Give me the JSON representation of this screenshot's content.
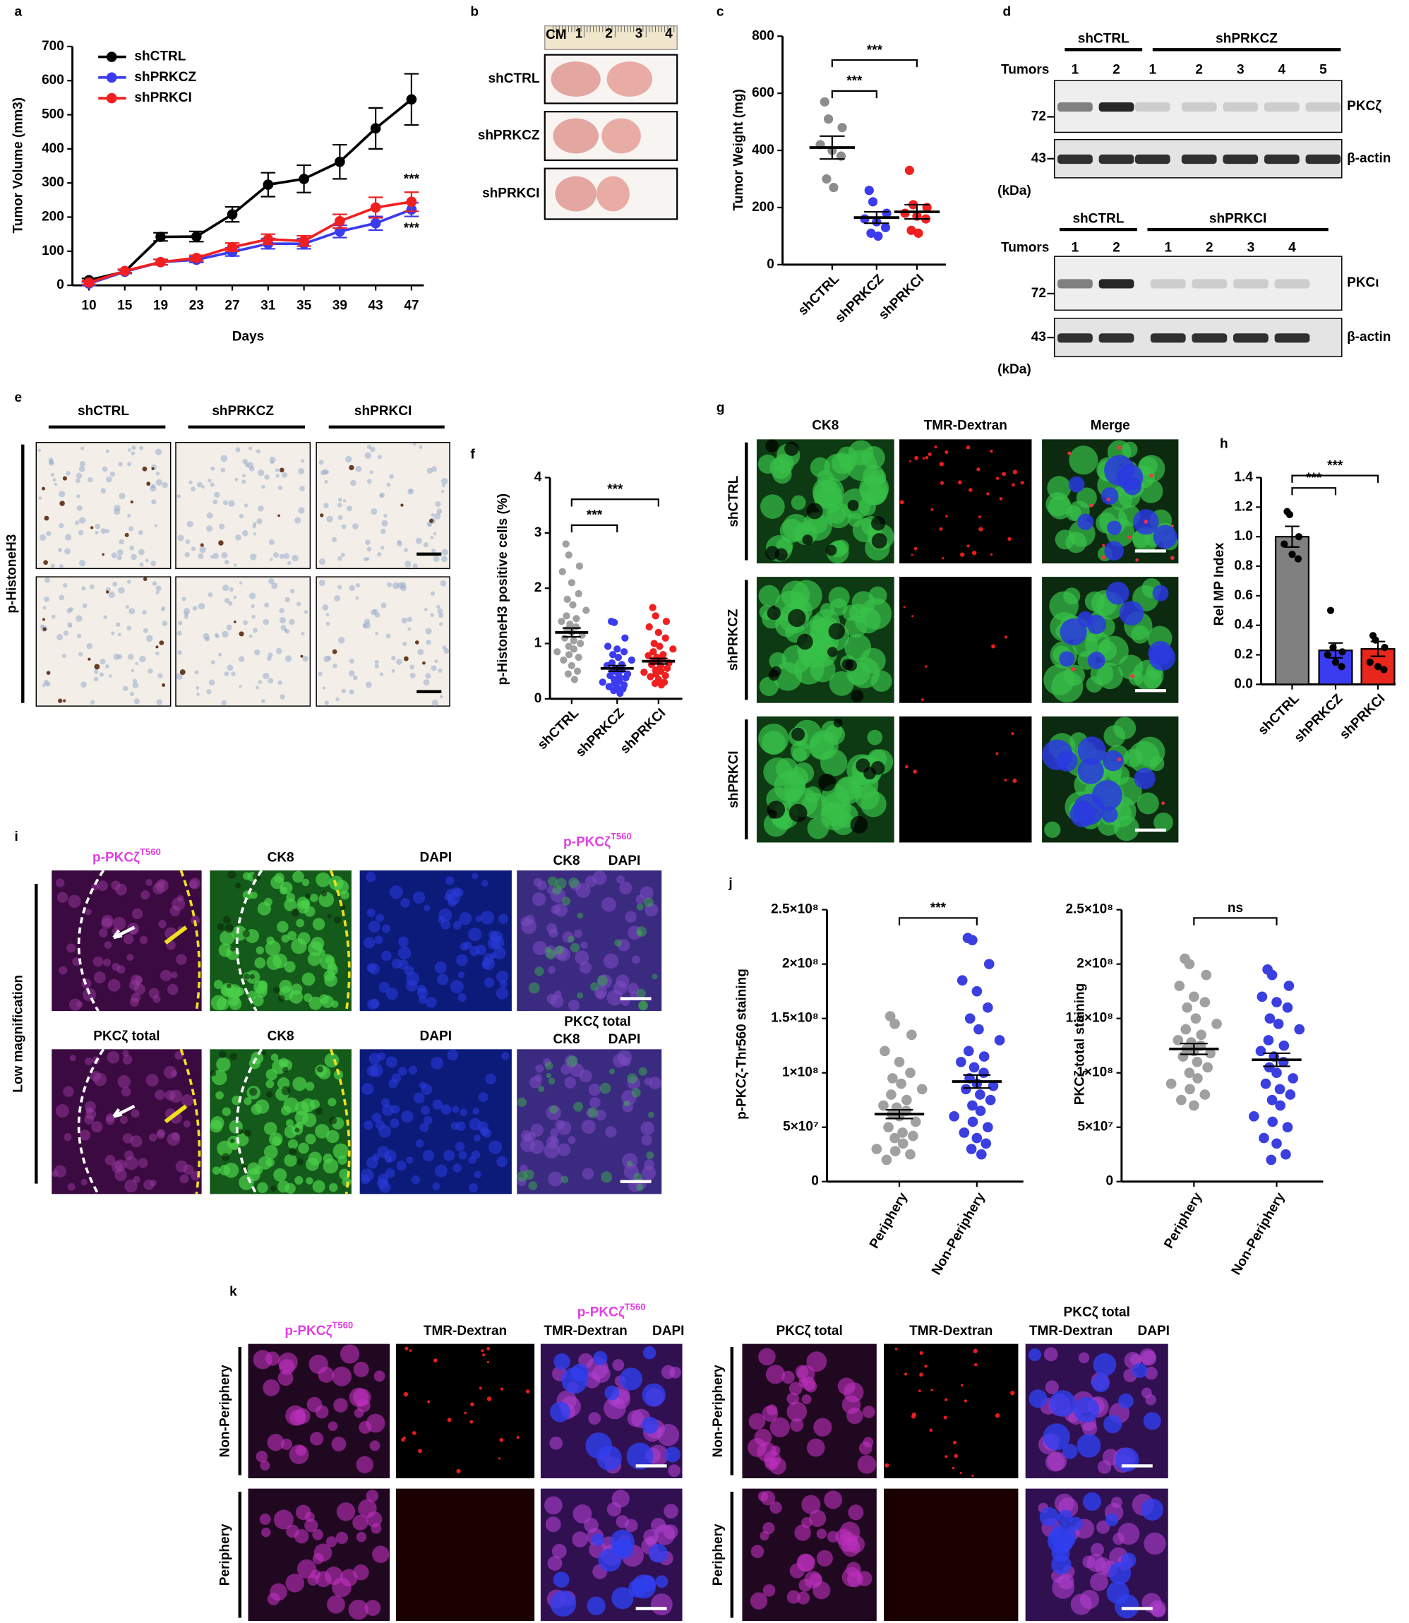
{
  "panel_labels": [
    "a",
    "b",
    "c",
    "d",
    "e",
    "f",
    "g",
    "h",
    "i",
    "j",
    "k"
  ],
  "chart_data": [
    {
      "type": "line",
      "y_label": "Tumor Volume (mm3)",
      "x_label": "Days",
      "categories": [
        "10",
        "15",
        "19",
        "23",
        "27",
        "31",
        "35",
        "39",
        "43",
        "47"
      ],
      "ylim": [
        0,
        700
      ],
      "yticks": [
        0,
        100,
        200,
        300,
        400,
        500,
        600,
        700
      ],
      "series": [
        {
          "name": "shCTRL",
          "color": "#000000",
          "values": [
            15,
            40,
            142,
            143,
            208,
            295,
            312,
            362,
            460,
            545
          ],
          "errors": [
            5,
            5,
            12,
            15,
            22,
            35,
            40,
            50,
            60,
            75
          ]
        },
        {
          "name": "shPRKCZ",
          "color": "#3b3bf0",
          "values": [
            5,
            40,
            68,
            75,
            98,
            122,
            122,
            158,
            182,
            222
          ],
          "errors": [
            5,
            5,
            8,
            8,
            12,
            15,
            15,
            18,
            20,
            20
          ],
          "end_label": "***"
        },
        {
          "name": "shPRKCI",
          "color": "#f02020",
          "values": [
            8,
            42,
            68,
            80,
            112,
            135,
            130,
            188,
            228,
            245
          ],
          "errors": [
            5,
            5,
            8,
            8,
            12,
            15,
            15,
            20,
            30,
            28
          ],
          "end_label": "***"
        }
      ]
    },
    {
      "type": "dot",
      "y_label": "Tumor Weight (mg)",
      "categories": [
        "shCTRL",
        "shPRKCZ",
        "shPRKCI"
      ],
      "colors": [
        "#8c8c8c",
        "#3b3bf0",
        "#f02020"
      ],
      "points": [
        [
          570,
          510,
          480,
          420,
          400,
          380,
          300,
          270
        ],
        [
          260,
          220,
          180,
          160,
          150,
          130,
          110,
          100
        ],
        [
          330,
          210,
          200,
          180,
          170,
          160,
          120,
          110
        ]
      ],
      "means": [
        410,
        165,
        185
      ],
      "sems": [
        40,
        20,
        25
      ],
      "ylim": [
        0,
        800
      ],
      "yticks": [
        0,
        200,
        400,
        600,
        800
      ],
      "comparisons": [
        {
          "pair": [
            "shCTRL",
            "shPRKCZ"
          ],
          "label": "***"
        },
        {
          "pair": [
            "shCTRL",
            "shPRKCI"
          ],
          "label": "***"
        }
      ]
    },
    {
      "type": "dot",
      "y_label": "p-HistoneH3 positive cells (%)",
      "categories": [
        "shCTRL",
        "shPRKCZ",
        "shPRKCI"
      ],
      "colors": [
        "#a0a0a0",
        "#3b3bf0",
        "#f02020"
      ],
      "points": [
        [
          2.8,
          2.6,
          2.4,
          2.3,
          2.1,
          1.9,
          1.8,
          1.7,
          1.6,
          1.5,
          1.45,
          1.4,
          1.35,
          1.3,
          1.25,
          1.2,
          1.15,
          1.1,
          1.05,
          1.0,
          0.95,
          0.9,
          0.85,
          0.8,
          0.75,
          0.7,
          0.6,
          0.5,
          0.45,
          0.35
        ],
        [
          1.4,
          1.38,
          1.1,
          0.95,
          0.9,
          0.85,
          0.8,
          0.75,
          0.7,
          0.65,
          0.62,
          0.6,
          0.55,
          0.52,
          0.5,
          0.48,
          0.45,
          0.42,
          0.4,
          0.38,
          0.35,
          0.32,
          0.3,
          0.28,
          0.25,
          0.22,
          0.2,
          0.18,
          0.15,
          0.1
        ],
        [
          1.65,
          1.5,
          1.4,
          1.3,
          1.2,
          1.1,
          1.0,
          0.95,
          0.9,
          0.85,
          0.8,
          0.78,
          0.75,
          0.72,
          0.7,
          0.68,
          0.65,
          0.62,
          0.6,
          0.55,
          0.52,
          0.5,
          0.48,
          0.45,
          0.42,
          0.4,
          0.35,
          0.3,
          0.28,
          0.25
        ]
      ],
      "means": [
        1.2,
        0.55,
        0.68
      ],
      "sems": [
        0.08,
        0.05,
        0.05
      ],
      "ylim": [
        0,
        4
      ],
      "yticks": [
        0,
        1,
        2,
        3,
        4
      ],
      "comparisons": [
        {
          "pair": [
            "shCTRL",
            "shPRKCZ"
          ],
          "label": "***"
        },
        {
          "pair": [
            "shCTRL",
            "shPRKCI"
          ],
          "label": "***"
        }
      ]
    },
    {
      "type": "bar",
      "y_label": "Rel MP Index",
      "categories": [
        "shCTRL",
        "shPRKCZ",
        "shPRKCI"
      ],
      "colors": [
        "#808080",
        "#3b3bf0",
        "#e8261c"
      ],
      "points": [
        [
          1.17,
          1.15,
          1.0,
          0.95,
          0.88,
          0.85
        ],
        [
          0.5,
          0.25,
          0.22,
          0.2,
          0.15,
          0.12
        ],
        [
          0.33,
          0.3,
          0.25,
          0.15,
          0.12,
          0.1
        ]
      ],
      "means": [
        1.0,
        0.23,
        0.24
      ],
      "sems": [
        0.07,
        0.05,
        0.05
      ],
      "ylim": [
        0,
        1.4
      ],
      "yticks": [
        {
          "value": 0,
          "label": "0.0"
        },
        0.2,
        0.4,
        0.6,
        0.8,
        {
          "value": 1,
          "label": "1.0"
        },
        1.2,
        1.4
      ],
      "comparisons": [
        {
          "pair": [
            "shCTRL",
            "shPRKCZ"
          ],
          "label": "***"
        },
        {
          "pair": [
            "shCTRL",
            "shPRKCI"
          ],
          "label": "***"
        }
      ]
    },
    {
      "type": "dot",
      "y_label": "p-PKCζ-Thr560 staining",
      "categories": [
        "Periphery",
        "Non-Periphery"
      ],
      "colors": [
        "#a0a0a0",
        "#3b3fe0"
      ],
      "points": [
        [
          152000000,
          145000000,
          135000000,
          120000000,
          110000000,
          100000000,
          95000000,
          90000000,
          85000000,
          80000000,
          75000000,
          70000000,
          68000000,
          65000000,
          62000000,
          60000000,
          55000000,
          50000000,
          45000000,
          42000000,
          40000000,
          35000000,
          30000000,
          28000000,
          25000000,
          20000000
        ],
        [
          224000000,
          222000000,
          200000000,
          185000000,
          175000000,
          160000000,
          150000000,
          140000000,
          130000000,
          120000000,
          115000000,
          110000000,
          105000000,
          100000000,
          95000000,
          90000000,
          88000000,
          85000000,
          80000000,
          75000000,
          70000000,
          65000000,
          60000000,
          55000000,
          50000000,
          45000000,
          40000000,
          35000000,
          30000000,
          25000000
        ]
      ],
      "means": [
        62000000,
        92000000
      ],
      "sems": [
        4000000,
        6000000
      ],
      "ylim": [
        0,
        250000000
      ],
      "yticks": [
        0,
        {
          "value": 50000000,
          "label": "5×10⁷"
        },
        {
          "value": 100000000,
          "label": "1×10⁸"
        },
        {
          "value": 150000000,
          "label": "1.5×10⁸"
        },
        {
          "value": 200000000,
          "label": "2×10⁸"
        },
        {
          "value": 250000000,
          "label": "2.5×10⁸"
        }
      ],
      "comparisons": [
        {
          "pair": [
            "Periphery",
            "Non-Periphery"
          ],
          "label": "***"
        }
      ]
    },
    {
      "type": "dot",
      "y_label": "PKCζ total staining",
      "categories": [
        "Periphery",
        "Non-Periphery"
      ],
      "colors": [
        "#a0a0a0",
        "#3b3fe0"
      ],
      "points": [
        [
          205000000,
          200000000,
          190000000,
          180000000,
          170000000,
          165000000,
          160000000,
          150000000,
          145000000,
          140000000,
          135000000,
          130000000,
          128000000,
          125000000,
          122000000,
          120000000,
          118000000,
          115000000,
          110000000,
          105000000,
          100000000,
          95000000,
          90000000,
          85000000,
          80000000,
          75000000,
          70000000
        ],
        [
          195000000,
          190000000,
          180000000,
          170000000,
          165000000,
          160000000,
          150000000,
          145000000,
          140000000,
          130000000,
          125000000,
          120000000,
          115000000,
          110000000,
          105000000,
          100000000,
          95000000,
          90000000,
          85000000,
          80000000,
          75000000,
          70000000,
          60000000,
          55000000,
          50000000,
          40000000,
          35000000,
          25000000,
          20000000
        ]
      ],
      "means": [
        122000000,
        112000000
      ],
      "sems": [
        5000000,
        6000000
      ],
      "ylim": [
        0,
        250000000
      ],
      "yticks": [
        0,
        {
          "value": 50000000,
          "label": "5×10⁷"
        },
        {
          "value": 100000000,
          "label": "1×10⁸"
        },
        {
          "value": 150000000,
          "label": "1.5×10⁸"
        },
        {
          "value": 200000000,
          "label": "2×10⁸"
        },
        {
          "value": 250000000,
          "label": "2.5×10⁸"
        }
      ],
      "comparisons": [
        {
          "pair": [
            "Periphery",
            "Non-Periphery"
          ],
          "label": "ns"
        }
      ]
    }
  ],
  "panel_b": {
    "ruler": "CM",
    "ruler_ticks": [
      "1",
      "2",
      "3",
      "4"
    ],
    "rows": [
      "shCTRL",
      "shPRKCZ",
      "shPRKCI"
    ]
  },
  "panel_d": {
    "blots": [
      {
        "groups": [
          "shCTRL",
          "shPRKCZ"
        ],
        "lanes_label": "Tumors",
        "lanes": [
          "1",
          "2",
          "1",
          "2",
          "3",
          "4",
          "5"
        ],
        "markers": [
          "72",
          "43"
        ],
        "proteins": [
          "PKCζ",
          "β-actin"
        ],
        "unit": "(kDa)"
      },
      {
        "groups": [
          "shCTRL",
          "shPRKCI"
        ],
        "lanes_label": "Tumors",
        "lanes": [
          "1",
          "2",
          "1",
          "2",
          "3",
          "4"
        ],
        "markers": [
          "72",
          "43"
        ],
        "proteins": [
          "PKCι",
          "β-actin"
        ],
        "unit": "(kDa)"
      }
    ]
  },
  "panel_e": {
    "columns": [
      "shCTRL",
      "shPRKCZ",
      "shPRKCI"
    ],
    "row_label": "p-HistoneH3"
  },
  "panel_g": {
    "columns": [
      "CK8",
      "TMR-Dextran",
      "Merge"
    ],
    "rows": [
      "shCTRL",
      "shPRKCZ",
      "shPRKCI"
    ]
  },
  "panel_i": {
    "row_label": "Low magnification",
    "rows": [
      {
        "columns": [
          {
            "text": "p-PKCζ",
            "sup": "T560"
          },
          "CK8",
          "DAPI"
        ],
        "merge": [
          {
            "text": "p-PKCζ",
            "sup": "T560"
          },
          "CK8",
          "DAPI"
        ]
      },
      {
        "columns": [
          "PKCζ total",
          "CK8",
          "DAPI"
        ],
        "merge": [
          "PKCζ total",
          "CK8",
          "DAPI"
        ]
      }
    ]
  },
  "panel_k": {
    "sets": [
      {
        "columns": [
          {
            "text": "p-PKCζ",
            "sup": "T560"
          },
          "TMR-Dextran"
        ],
        "merge": [
          {
            "text": "p-PKCζ",
            "sup": "T560"
          },
          "TMR-Dextran",
          "DAPI"
        ],
        "rows": [
          "Non-Periphery",
          "Periphery"
        ]
      },
      {
        "columns": [
          "PKCζ total",
          "TMR-Dextran"
        ],
        "merge": [
          "PKCζ total",
          "TMR-Dextran",
          "DAPI"
        ],
        "rows": [
          "Non-Periphery",
          "Periphery"
        ]
      }
    ]
  }
}
